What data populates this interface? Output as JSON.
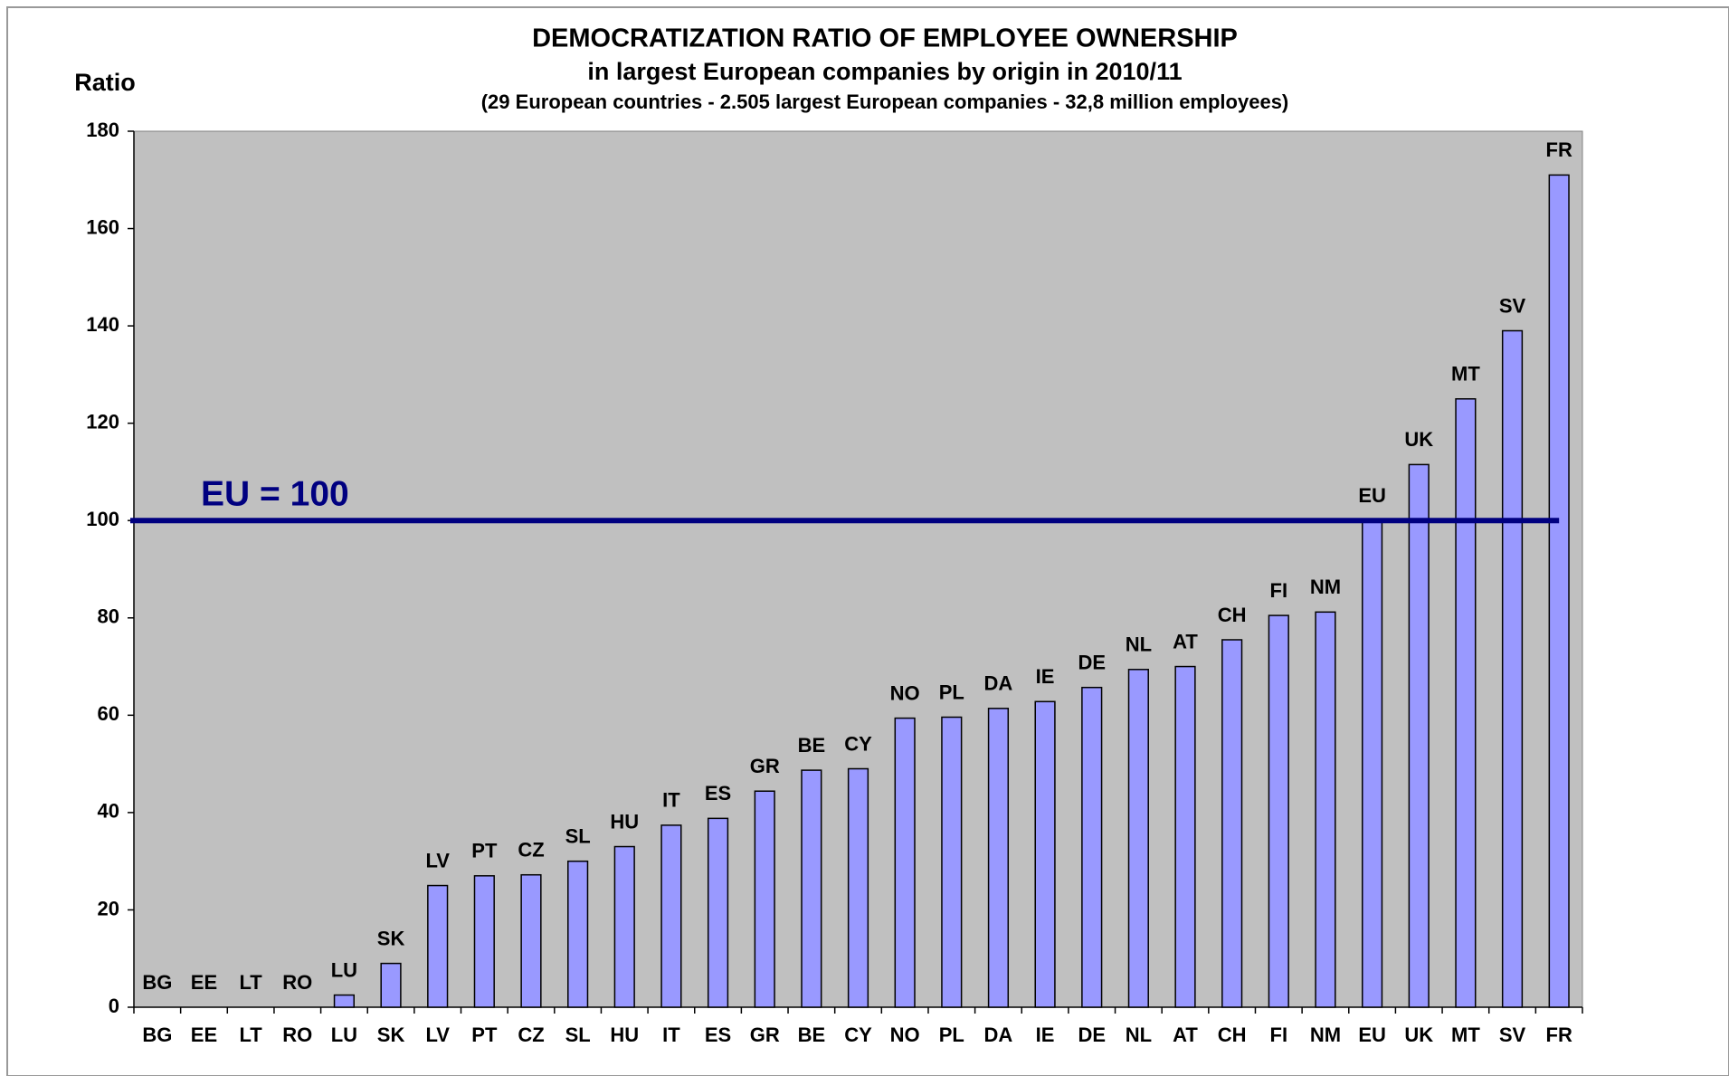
{
  "chart_data": {
    "type": "bar",
    "title": "DEMOCRATIZATION  RATIO  OF  EMPLOYEE  OWNERSHIP",
    "subtitle": "in largest European companies by origin in 2010/11",
    "note": "(29 European countries - 2.505 largest European companies - 32,8 million employees)",
    "y_label": "Ratio",
    "categories": [
      "BG",
      "EE",
      "LT",
      "RO",
      "LU",
      "SK",
      "LV",
      "PT",
      "CZ",
      "SL",
      "HU",
      "IT",
      "ES",
      "GR",
      "BE",
      "CY",
      "NO",
      "PL",
      "DA",
      "IE",
      "DE",
      "NL",
      "AT",
      "CH",
      "FI",
      "NM",
      "EU",
      "UK",
      "MT",
      "SV",
      "FR"
    ],
    "values": [
      0,
      0,
      0,
      0,
      2.5,
      9,
      25,
      27,
      27.2,
      30,
      33,
      37.4,
      38.8,
      44.4,
      48.7,
      49,
      59.4,
      59.6,
      61.4,
      62.8,
      65.7,
      69.4,
      70,
      75.5,
      80.5,
      81.2,
      100,
      111.5,
      125,
      139,
      171
    ],
    "color": "#9999ff",
    "ylim": [
      0,
      180
    ],
    "yticks": [
      0,
      20,
      40,
      60,
      80,
      100,
      120,
      140,
      160,
      180
    ],
    "reference_line": {
      "value": 100,
      "label": "EU = 100",
      "color": "#000080"
    },
    "plot_background": "#c0c0c0"
  }
}
